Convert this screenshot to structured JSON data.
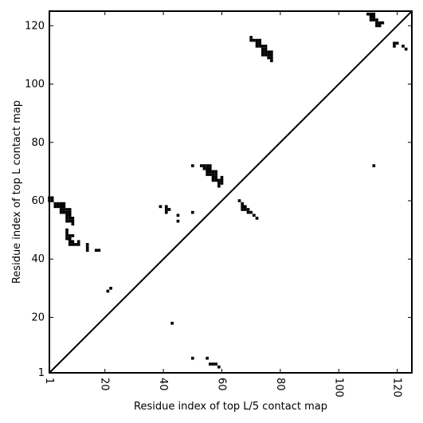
{
  "chart_data": {
    "type": "heatmap",
    "xlabel": "Residue index of top L/5 contact map",
    "ylabel": "Residue index of top L contact map",
    "xlim": [
      1,
      125
    ],
    "ylim": [
      1,
      125
    ],
    "xticks": [
      1,
      20,
      40,
      60,
      80,
      100,
      120
    ],
    "yticks": [
      1,
      20,
      40,
      60,
      80,
      100,
      120
    ],
    "grid": false,
    "diagonal": true,
    "cells": [
      [
        1,
        61
      ],
      [
        2,
        61
      ],
      [
        1,
        60
      ],
      [
        2,
        60
      ],
      [
        3,
        59
      ],
      [
        4,
        59
      ],
      [
        5,
        59
      ],
      [
        6,
        59
      ],
      [
        3,
        58
      ],
      [
        4,
        58
      ],
      [
        5,
        58
      ],
      [
        6,
        58
      ],
      [
        5,
        57
      ],
      [
        6,
        57
      ],
      [
        7,
        57
      ],
      [
        8,
        57
      ],
      [
        5,
        56
      ],
      [
        6,
        56
      ],
      [
        7,
        56
      ],
      [
        8,
        56
      ],
      [
        7,
        55
      ],
      [
        8,
        55
      ],
      [
        7,
        54
      ],
      [
        8,
        54
      ],
      [
        9,
        54
      ],
      [
        7,
        53
      ],
      [
        8,
        53
      ],
      [
        9,
        53
      ],
      [
        9,
        52
      ],
      [
        7,
        50
      ],
      [
        7,
        49
      ],
      [
        7,
        48
      ],
      [
        8,
        48
      ],
      [
        9,
        48
      ],
      [
        7,
        47
      ],
      [
        8,
        47
      ],
      [
        8,
        46
      ],
      [
        9,
        46
      ],
      [
        11,
        46
      ],
      [
        8,
        45
      ],
      [
        9,
        45
      ],
      [
        10,
        45
      ],
      [
        11,
        45
      ],
      [
        14,
        45
      ],
      [
        14,
        44
      ],
      [
        14,
        43
      ],
      [
        17,
        43
      ],
      [
        18,
        43
      ],
      [
        21,
        29
      ],
      [
        22,
        30
      ],
      [
        39,
        58
      ],
      [
        41,
        58
      ],
      [
        41,
        57
      ],
      [
        42,
        57
      ],
      [
        41,
        56
      ],
      [
        45,
        55
      ],
      [
        45,
        53
      ],
      [
        50,
        72
      ],
      [
        50,
        56
      ],
      [
        53,
        72
      ],
      [
        54,
        72
      ],
      [
        55,
        72
      ],
      [
        56,
        72
      ],
      [
        54,
        71
      ],
      [
        55,
        71
      ],
      [
        56,
        71
      ],
      [
        55,
        70
      ],
      [
        56,
        70
      ],
      [
        57,
        70
      ],
      [
        58,
        70
      ],
      [
        55,
        69
      ],
      [
        56,
        69
      ],
      [
        57,
        69
      ],
      [
        58,
        69
      ],
      [
        57,
        68
      ],
      [
        58,
        68
      ],
      [
        60,
        68
      ],
      [
        57,
        67
      ],
      [
        58,
        67
      ],
      [
        59,
        67
      ],
      [
        60,
        67
      ],
      [
        59,
        66
      ],
      [
        60,
        66
      ],
      [
        59,
        65
      ],
      [
        66,
        60
      ],
      [
        67,
        59
      ],
      [
        67,
        58
      ],
      [
        68,
        58
      ],
      [
        67,
        57
      ],
      [
        68,
        57
      ],
      [
        69,
        57
      ],
      [
        69,
        56
      ],
      [
        70,
        56
      ],
      [
        71,
        55
      ],
      [
        72,
        54
      ],
      [
        70,
        116
      ],
      [
        70,
        115
      ],
      [
        71,
        115
      ],
      [
        72,
        115
      ],
      [
        73,
        115
      ],
      [
        72,
        114
      ],
      [
        73,
        114
      ],
      [
        72,
        113
      ],
      [
        73,
        113
      ],
      [
        74,
        113
      ],
      [
        75,
        113
      ],
      [
        74,
        112
      ],
      [
        75,
        112
      ],
      [
        74,
        111
      ],
      [
        75,
        111
      ],
      [
        76,
        111
      ],
      [
        77,
        111
      ],
      [
        74,
        110
      ],
      [
        75,
        110
      ],
      [
        76,
        110
      ],
      [
        77,
        110
      ],
      [
        76,
        109
      ],
      [
        77,
        109
      ],
      [
        77,
        108
      ],
      [
        110,
        124
      ],
      [
        111,
        124
      ],
      [
        112,
        124
      ],
      [
        111,
        123
      ],
      [
        112,
        123
      ],
      [
        111,
        122
      ],
      [
        112,
        122
      ],
      [
        113,
        122
      ],
      [
        113,
        121
      ],
      [
        114,
        121
      ],
      [
        115,
        121
      ],
      [
        113,
        120
      ],
      [
        114,
        120
      ],
      [
        119,
        114
      ],
      [
        120,
        114
      ],
      [
        119,
        113
      ],
      [
        122,
        113
      ],
      [
        123,
        112
      ],
      [
        112,
        72
      ],
      [
        43,
        18
      ],
      [
        50,
        6
      ],
      [
        55,
        6
      ],
      [
        56,
        4
      ],
      [
        57,
        4
      ],
      [
        58,
        4
      ],
      [
        59,
        3
      ]
    ]
  }
}
